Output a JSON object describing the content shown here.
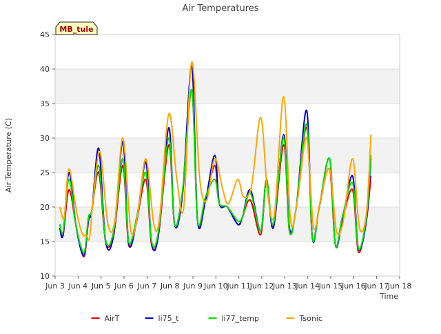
{
  "chart_data": {
    "type": "line",
    "title": "Air Temperatures",
    "xlabel": "Time",
    "ylabel": "Air Temperature (C)",
    "badge": "MB_tule",
    "xlim": [
      3.0,
      18.0
    ],
    "ylim": [
      10,
      45
    ],
    "yticks": [
      10,
      15,
      20,
      25,
      30,
      35,
      40,
      45
    ],
    "xticks": [
      {
        "v": 3,
        "label": "Jun 3"
      },
      {
        "v": 4,
        "label": "Jun 4"
      },
      {
        "v": 5,
        "label": "Jun 5"
      },
      {
        "v": 6,
        "label": "Jun 6"
      },
      {
        "v": 7,
        "label": "Jun 7"
      },
      {
        "v": 8,
        "label": "Jun 8"
      },
      {
        "v": 9,
        "label": "Jun 9"
      },
      {
        "v": 10,
        "label": "Jun 10"
      },
      {
        "v": 11,
        "label": "Jun 11"
      },
      {
        "v": 12,
        "label": "Jun 12"
      },
      {
        "v": 13,
        "label": "Jun 13"
      },
      {
        "v": 14,
        "label": "Jun 14"
      },
      {
        "v": 15,
        "label": "Jun 15"
      },
      {
        "v": 16,
        "label": "Jun 16"
      },
      {
        "v": 17,
        "label": "Jun 17"
      },
      {
        "v": 18,
        "label": "Jun 18"
      }
    ],
    "grid": true,
    "background_bands": true,
    "legend_position": "bottom",
    "series": [
      {
        "name": "AirT",
        "color": "#dd0000",
        "x": [
          3.2,
          3.35,
          3.6,
          3.9,
          4.15,
          4.3,
          4.45,
          4.6,
          4.9,
          5.2,
          5.55,
          5.95,
          6.2,
          6.55,
          6.95,
          7.2,
          7.5,
          7.95,
          8.2,
          8.55,
          8.95,
          9.2,
          9.55,
          9.95,
          10.15,
          10.5,
          10.95,
          11.15,
          11.5,
          11.95,
          12.2,
          12.5,
          12.95,
          13.2,
          13.5,
          13.95,
          14.2,
          14.5,
          14.95,
          15.2,
          15.5,
          15.95,
          16.2,
          16.55,
          16.75
        ],
        "y": [
          17,
          16,
          22.5,
          17.5,
          13.5,
          13.2,
          18,
          19.5,
          25,
          15,
          16,
          26,
          14.5,
          18,
          24,
          14.5,
          16,
          29,
          17.5,
          22,
          37,
          18,
          21,
          26,
          20.5,
          20,
          17.5,
          18.5,
          21,
          16,
          24,
          17,
          29,
          16.5,
          20,
          31.5,
          15.5,
          20,
          25.5,
          14.5,
          18,
          22.5,
          13.5,
          18,
          24.5
        ]
      },
      {
        "name": "li75_t",
        "color": "#0000cc",
        "x": [
          3.2,
          3.35,
          3.6,
          3.9,
          4.15,
          4.3,
          4.45,
          4.6,
          4.9,
          5.2,
          5.55,
          5.95,
          6.2,
          6.55,
          6.95,
          7.2,
          7.5,
          7.95,
          8.2,
          8.55,
          8.95,
          9.2,
          9.55,
          9.95,
          10.15,
          10.5,
          10.95,
          11.15,
          11.5,
          11.95,
          12.2,
          12.5,
          12.95,
          13.2,
          13.5,
          13.95,
          14.2,
          14.5,
          14.95,
          15.2,
          15.5,
          15.95,
          16.2,
          16.55,
          16.75
        ],
        "y": [
          17,
          16,
          25,
          17.5,
          13.5,
          13.5,
          18,
          19.5,
          28.5,
          15,
          16,
          29.5,
          14.8,
          18,
          26.5,
          14.8,
          16,
          31.5,
          17.5,
          22,
          40.5,
          18,
          21,
          27.5,
          20.5,
          20,
          17.5,
          18.5,
          22.5,
          16.5,
          24,
          17,
          30.5,
          17,
          20,
          34,
          15.5,
          20,
          27,
          14.5,
          18,
          24.5,
          14,
          18,
          27
        ]
      },
      {
        "name": "li77_temp",
        "color": "#00dd00",
        "x": [
          3.2,
          3.35,
          3.6,
          3.9,
          4.15,
          4.3,
          4.45,
          4.6,
          4.9,
          5.2,
          5.55,
          5.95,
          6.2,
          6.55,
          6.95,
          7.2,
          7.5,
          7.95,
          8.2,
          8.55,
          8.95,
          9.2,
          9.55,
          9.95,
          10.15,
          10.5,
          10.95,
          11.15,
          11.5,
          11.95,
          12.2,
          12.5,
          12.95,
          13.2,
          13.5,
          13.95,
          14.2,
          14.5,
          14.95,
          15.2,
          15.5,
          15.95,
          16.2,
          16.55,
          16.75
        ],
        "y": [
          17.5,
          16.5,
          24,
          17.5,
          14,
          13.8,
          18.5,
          19.5,
          26,
          15.2,
          16.5,
          27,
          15,
          18.5,
          25,
          15,
          16.5,
          30,
          17.5,
          22.5,
          37,
          18,
          21.5,
          24,
          20.5,
          20,
          18,
          18.5,
          22,
          16.5,
          24,
          17.5,
          30,
          16.5,
          20,
          32,
          15.5,
          20,
          27,
          14.5,
          18.5,
          23.5,
          14,
          18.5,
          27.5
        ]
      },
      {
        "name": "Tsonic",
        "color": "#ffa500",
        "x": [
          3.2,
          3.4,
          3.6,
          3.95,
          4.2,
          4.35,
          4.5,
          4.65,
          4.95,
          5.3,
          5.6,
          5.95,
          6.3,
          6.6,
          6.95,
          7.3,
          7.55,
          7.95,
          8.3,
          8.6,
          8.95,
          9.3,
          9.6,
          9.95,
          10.3,
          10.55,
          10.95,
          11.2,
          11.55,
          11.95,
          12.25,
          12.55,
          12.95,
          13.25,
          13.55,
          13.95,
          14.25,
          14.55,
          14.95,
          15.25,
          15.55,
          15.95,
          16.25,
          16.55,
          16.75
        ],
        "y": [
          20,
          18.5,
          25.5,
          19,
          16,
          16,
          15.5,
          21,
          28,
          17.5,
          18,
          30,
          16.5,
          19,
          27,
          17.5,
          18.5,
          33.5,
          24,
          20,
          41,
          24,
          21,
          27,
          22.5,
          20.5,
          24,
          21.5,
          23,
          33,
          22,
          19,
          36,
          18,
          21,
          30,
          17,
          21,
          25.5,
          16.5,
          18,
          27,
          17,
          19,
          30.5
        ]
      }
    ]
  }
}
